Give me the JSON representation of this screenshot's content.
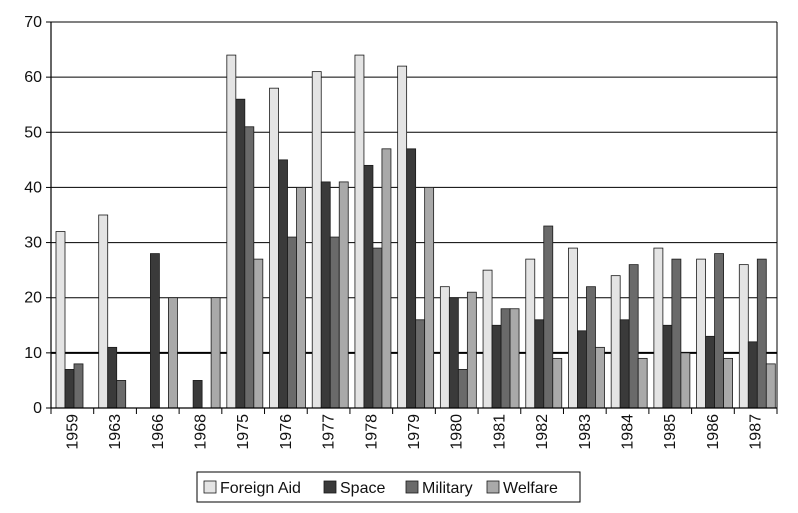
{
  "chart_data": {
    "type": "bar",
    "title": "",
    "xlabel": "",
    "ylabel": "",
    "ylim": [
      0,
      70
    ],
    "yticks": [
      0,
      10,
      20,
      30,
      40,
      50,
      60,
      70
    ],
    "grid": true,
    "legend_position": "bottom",
    "categories": [
      "1959",
      "1963",
      "1966",
      "1968",
      "1975",
      "1976",
      "1977",
      "1978",
      "1979",
      "1980",
      "1981",
      "1982",
      "1983",
      "1984",
      "1985",
      "1986",
      "1987"
    ],
    "series": [
      {
        "name": "Foreign Aid",
        "color": "#e4e4e4",
        "values": [
          32,
          35,
          0,
          0,
          64,
          58,
          61,
          64,
          62,
          22,
          25,
          27,
          29,
          24,
          29,
          27,
          26
        ]
      },
      {
        "name": "Space",
        "color": "#3a3a3a",
        "values": [
          7,
          11,
          28,
          5,
          56,
          45,
          41,
          44,
          47,
          20,
          15,
          16,
          14,
          16,
          15,
          13,
          12
        ]
      },
      {
        "name": "Military",
        "color": "#6a6a6a",
        "values": [
          8,
          5,
          0,
          0,
          51,
          31,
          31,
          29,
          16,
          7,
          18,
          33,
          22,
          26,
          27,
          28,
          27
        ]
      },
      {
        "name": "Welfare",
        "color": "#a9a9a9",
        "values": [
          0,
          0,
          20,
          20,
          27,
          40,
          41,
          47,
          40,
          21,
          18,
          9,
          11,
          9,
          10,
          9,
          8
        ]
      }
    ]
  }
}
